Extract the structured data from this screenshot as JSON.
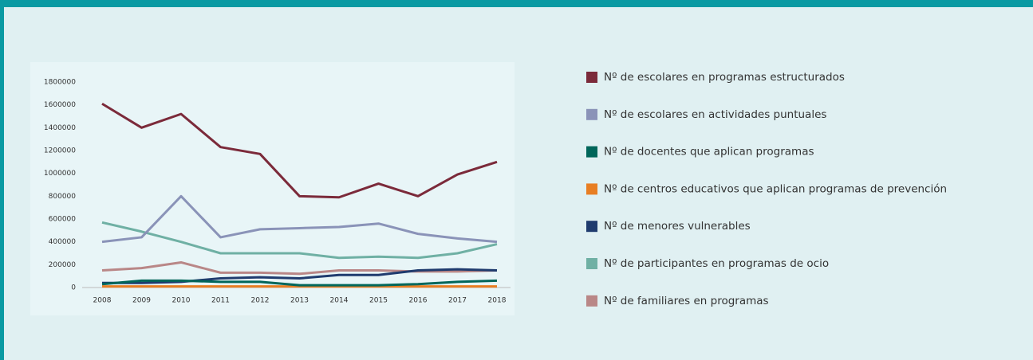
{
  "chart_data": {
    "type": "line",
    "categories": [
      "2008",
      "2009",
      "2010",
      "2011",
      "2012",
      "2013",
      "2014",
      "2015",
      "2016",
      "2017",
      "2018"
    ],
    "series": [
      {
        "name": "Nº de escolares en programas estructurados",
        "color": "#7b2a3a",
        "values": [
          1610000,
          1400000,
          1520000,
          1230000,
          1170000,
          800000,
          790000,
          910000,
          800000,
          990000,
          1100000
        ]
      },
      {
        "name": "Nº de escolares en actividades puntuales",
        "color": "#8a93b8",
        "values": [
          400000,
          440000,
          800000,
          440000,
          510000,
          520000,
          530000,
          560000,
          470000,
          430000,
          400000
        ]
      },
      {
        "name": "Nº de docentes que aplican programas",
        "color": "#00665a",
        "values": [
          30000,
          60000,
          60000,
          50000,
          50000,
          20000,
          20000,
          20000,
          30000,
          50000,
          60000
        ]
      },
      {
        "name": "Nº de centros educativos que aplican programas de prevención",
        "color": "#e87e23",
        "values": [
          10000,
          10000,
          10000,
          10000,
          10000,
          10000,
          10000,
          10000,
          10000,
          10000,
          10000
        ]
      },
      {
        "name": "Nº de menores vulnerables",
        "color": "#1f3b6e",
        "values": [
          40000,
          40000,
          50000,
          80000,
          90000,
          80000,
          110000,
          110000,
          150000,
          160000,
          150000
        ]
      },
      {
        "name": "Nº de participantes en programas de ocio",
        "color": "#6fb0a4",
        "values": [
          570000,
          490000,
          400000,
          300000,
          300000,
          300000,
          260000,
          270000,
          260000,
          300000,
          380000
        ]
      },
      {
        "name": "Nº de familiares en programas",
        "color": "#b98787",
        "values": [
          150000,
          170000,
          220000,
          130000,
          130000,
          120000,
          150000,
          150000,
          140000,
          140000,
          150000
        ]
      }
    ],
    "ylim": [
      0,
      1800000
    ],
    "yticks": [
      0,
      200000,
      400000,
      600000,
      800000,
      1000000,
      1200000,
      1400000,
      1600000,
      1800000
    ],
    "grid": false,
    "legend": "right"
  }
}
